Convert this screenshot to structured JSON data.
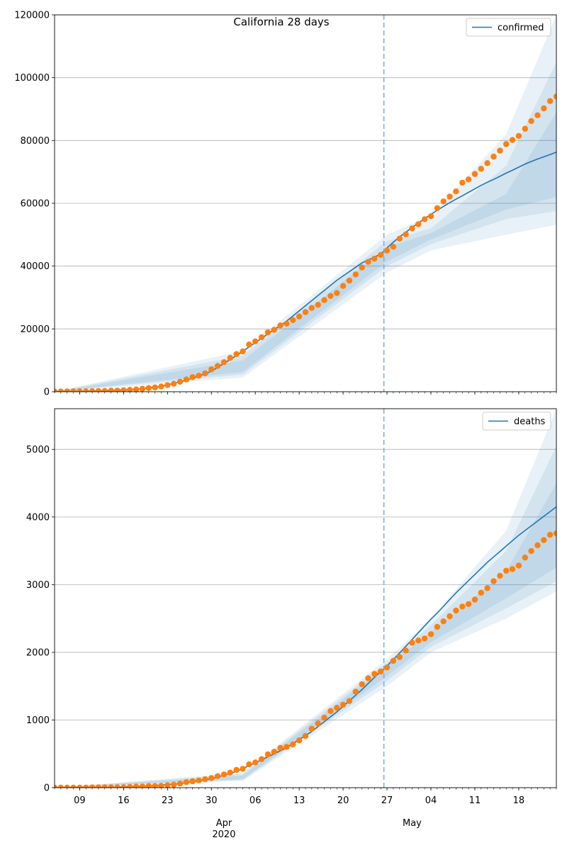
{
  "chart_data": [
    {
      "type": "line",
      "title": "California 28 days",
      "date_start": "2020-03-05",
      "last_observed_date": "2020-04-26",
      "observed_dates": [
        "2020-03-05",
        "2020-03-06",
        "2020-03-07",
        "2020-03-08",
        "2020-03-09",
        "2020-03-10",
        "2020-03-11",
        "2020-03-12",
        "2020-03-13",
        "2020-03-14",
        "2020-03-15",
        "2020-03-16",
        "2020-03-17",
        "2020-03-18",
        "2020-03-19",
        "2020-03-20",
        "2020-03-21",
        "2020-03-22",
        "2020-03-23",
        "2020-03-24",
        "2020-03-25",
        "2020-03-26",
        "2020-03-27",
        "2020-03-28",
        "2020-03-29",
        "2020-03-30",
        "2020-03-31",
        "2020-04-01",
        "2020-04-02",
        "2020-04-03",
        "2020-04-04",
        "2020-04-05",
        "2020-04-06",
        "2020-04-07",
        "2020-04-08",
        "2020-04-09",
        "2020-04-10",
        "2020-04-11",
        "2020-04-12",
        "2020-04-13",
        "2020-04-14",
        "2020-04-15",
        "2020-04-16",
        "2020-04-17",
        "2020-04-18",
        "2020-04-19",
        "2020-04-20",
        "2020-04-21",
        "2020-04-22",
        "2020-04-23",
        "2020-04-24",
        "2020-04-25",
        "2020-04-26",
        "2020-04-27",
        "2020-04-28",
        "2020-04-29",
        "2020-04-30",
        "2020-05-01",
        "2020-05-02",
        "2020-05-03",
        "2020-05-04",
        "2020-05-05",
        "2020-05-06",
        "2020-05-07",
        "2020-05-08",
        "2020-05-09",
        "2020-05-10",
        "2020-05-11",
        "2020-05-12",
        "2020-05-13",
        "2020-05-14",
        "2020-05-15",
        "2020-05-16",
        "2020-05-17",
        "2020-05-18",
        "2020-05-19",
        "2020-05-20",
        "2020-05-21",
        "2020-05-22",
        "2020-05-23",
        "2020-05-24"
      ],
      "observed": [
        60,
        69,
        88,
        114,
        133,
        157,
        177,
        198,
        247,
        335,
        372,
        470,
        598,
        751,
        952,
        1177,
        1364,
        1646,
        2108,
        2535,
        3181,
        3899,
        4657,
        5095,
        5852,
        7138,
        8210,
        9399,
        10773,
        12004,
        12837,
        15034,
        16019,
        17351,
        18897,
        19710,
        21081,
        21706,
        22795,
        23957,
        25356,
        26686,
        27677,
        29157,
        30491,
        31431,
        33686,
        35396,
        37344,
        39561,
        41355,
        42368,
        43558,
        44966,
        46164,
        48747,
        50130,
        52026,
        53347,
        54937,
        55884,
        58456,
        60614,
        62148,
        63779,
        66558,
        67600,
        69329,
        70978,
        72798,
        74871,
        76793,
        78839,
        80166,
        81457,
        83752,
        86197,
        88031,
        90252,
        92539,
        94020
      ],
      "forecast_dates": [
        "2020-04-26",
        "2020-04-27",
        "2020-04-28",
        "2020-04-29",
        "2020-04-30",
        "2020-05-01",
        "2020-05-02",
        "2020-05-03",
        "2020-05-04",
        "2020-05-05",
        "2020-05-06",
        "2020-05-07",
        "2020-05-08",
        "2020-05-09",
        "2020-05-10",
        "2020-05-11",
        "2020-05-12",
        "2020-05-13",
        "2020-05-14",
        "2020-05-15",
        "2020-05-16",
        "2020-05-17",
        "2020-05-18",
        "2020-05-19",
        "2020-05-20",
        "2020-05-21",
        "2020-05-22",
        "2020-05-23",
        "2020-05-24"
      ],
      "series": [
        {
          "name": "confirmed",
          "color": "#1f77b4",
          "fit_dates": [
            "2020-03-05",
            "2020-03-12",
            "2020-03-18",
            "2020-03-22",
            "2020-03-26",
            "2020-03-30",
            "2020-04-03",
            "2020-04-07",
            "2020-04-11",
            "2020-04-15",
            "2020-04-19",
            "2020-04-23",
            "2020-04-26"
          ],
          "fit_values": [
            40,
            200,
            750,
            1700,
            3600,
            6500,
            11500,
            17000,
            22500,
            29000,
            35500,
            41000,
            43800
          ],
          "values": [
            43800,
            45800,
            47600,
            49300,
            50800,
            52300,
            53700,
            55100,
            56500,
            57800,
            59000,
            60200,
            61300,
            62400,
            63500,
            64600,
            65700,
            66700,
            67600,
            68600,
            69600,
            70500,
            71500,
            72500,
            73300,
            74100,
            74800,
            75500,
            76300
          ]
        },
        {
          "name": "deaths",
          "color": "#1f77b4",
          "fit_dates": [
            "2020-03-05",
            "2020-03-15",
            "2020-03-20",
            "2020-03-25",
            "2020-03-30",
            "2020-04-03",
            "2020-04-07",
            "2020-04-11",
            "2020-04-15",
            "2020-04-19",
            "2020-04-23",
            "2020-04-26"
          ],
          "fit_values": [
            0,
            8,
            25,
            60,
            130,
            240,
            410,
            590,
            830,
            1120,
            1450,
            1720
          ],
          "values": [
            1720,
            1800,
            1890,
            1990,
            2090,
            2190,
            2290,
            2390,
            2490,
            2580,
            2680,
            2780,
            2880,
            2970,
            3060,
            3150,
            3240,
            3330,
            3410,
            3490,
            3570,
            3650,
            3730,
            3800,
            3870,
            3940,
            4010,
            4080,
            4150
          ]
        }
      ],
      "panels": [
        {
          "series_index": 0,
          "ylim": [
            0,
            120000
          ],
          "yticks": [
            "0",
            "20000",
            "40000",
            "60000",
            "80000",
            "100000",
            "120000"
          ],
          "legend": "top-right",
          "grid": "horizontal",
          "bands": [
            {
              "lo": [
                [
                  0,
                  0
                ],
                [
                  30,
                  4500
                ],
                [
                  53,
                  38000
                ],
                [
                  60,
                  45000
                ],
                [
                  72,
                  50000
                ],
                [
                  80,
                  53200
                ]
              ],
              "hi": [
                [
                  0,
                  0
                ],
                [
                  30,
                  13000
                ],
                [
                  53,
                  50000
                ],
                [
                  60,
                  56000
                ],
                [
                  72,
                  82000
                ],
                [
                  80,
                  120000
                ]
              ]
            },
            {
              "lo": [
                [
                  0,
                  0
                ],
                [
                  30,
                  5500
                ],
                [
                  53,
                  40000
                ],
                [
                  60,
                  47000
                ],
                [
                  72,
                  55000
                ],
                [
                  80,
                  57500
                ]
              ],
              "hi": [
                [
                  0,
                  0
                ],
                [
                  30,
                  11500
                ],
                [
                  53,
                  48000
                ],
                [
                  60,
                  52000
                ],
                [
                  72,
                  72000
                ],
                [
                  80,
                  105000
                ]
              ]
            },
            {
              "lo": [
                [
                  0,
                  0
                ],
                [
                  30,
                  6300
                ],
                [
                  53,
                  41500
                ],
                [
                  60,
                  48500
                ],
                [
                  72,
                  58000
                ],
                [
                  80,
                  62000
                ]
              ],
              "hi": [
                [
                  0,
                  0
                ],
                [
                  30,
                  10000
                ],
                [
                  53,
                  46000
                ],
                [
                  60,
                  50500
                ],
                [
                  72,
                  63000
                ],
                [
                  80,
                  89000
                ]
              ]
            }
          ]
        },
        {
          "series_index": 1,
          "ylim": [
            0,
            5600
          ],
          "yticks": [
            "0",
            "1000",
            "2000",
            "3000",
            "4000",
            "5000"
          ],
          "legend": "top-right",
          "grid": "horizontal",
          "bands": [
            {
              "lo": [
                [
                  0,
                  0
                ],
                [
                  30,
                  100
                ],
                [
                  53,
                  1500
                ],
                [
                  60,
                  2000
                ],
                [
                  72,
                  2500
                ],
                [
                  80,
                  2900
                ]
              ],
              "hi": [
                [
                  0,
                  0
                ],
                [
                  30,
                  220
                ],
                [
                  53,
                  1900
                ],
                [
                  60,
                  2500
                ],
                [
                  72,
                  3800
                ],
                [
                  80,
                  5600
                ]
              ]
            },
            {
              "lo": [
                [
                  0,
                  0
                ],
                [
                  30,
                  115
                ],
                [
                  53,
                  1580
                ],
                [
                  60,
                  2080
                ],
                [
                  72,
                  2650
                ],
                [
                  80,
                  3050
                ]
              ],
              "hi": [
                [
                  0,
                  0
                ],
                [
                  30,
                  200
                ],
                [
                  53,
                  1850
                ],
                [
                  60,
                  2400
                ],
                [
                  72,
                  3500
                ],
                [
                  80,
                  5050
                ]
              ]
            },
            {
              "lo": [
                [
                  0,
                  0
                ],
                [
                  30,
                  125
                ],
                [
                  53,
                  1650
                ],
                [
                  60,
                  2150
                ],
                [
                  72,
                  2800
                ],
                [
                  80,
                  3250
                ]
              ],
              "hi": [
                [
                  0,
                  0
                ],
                [
                  30,
                  180
                ],
                [
                  53,
                  1800
                ],
                [
                  60,
                  2300
                ],
                [
                  72,
                  3200
                ],
                [
                  80,
                  4500
                ]
              ]
            }
          ]
        }
      ],
      "xtick_labels": [
        "09",
        "16",
        "23",
        "30",
        "06",
        "13",
        "20",
        "27",
        "04",
        "11",
        "18"
      ],
      "xtick_dates": [
        "2020-03-09",
        "2020-03-16",
        "2020-03-23",
        "2020-03-30",
        "2020-04-06",
        "2020-04-13",
        "2020-04-20",
        "2020-04-27",
        "2020-05-04",
        "2020-05-11",
        "2020-05-18"
      ],
      "month_labels": [
        {
          "date": "2020-04-01",
          "label": "Apr",
          "year": "2020"
        },
        {
          "date": "2020-05-01",
          "label": "May",
          "year": ""
        }
      ],
      "colors": {
        "observed": "#ff7f0e",
        "model": "#1f77b4",
        "band": "#1f77b4",
        "vline": "#7fb0d0",
        "grid": "#b0b0b0"
      }
    }
  ]
}
